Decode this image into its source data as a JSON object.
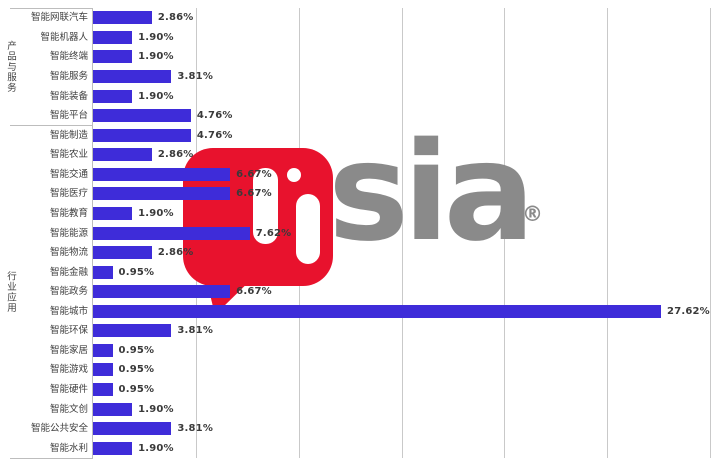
{
  "watermark": {
    "brand_text": "sia",
    "registered": "®",
    "icon_color": "#e8122d",
    "text_color": "#8a8a8a"
  },
  "colors": {
    "bar": "#3e2cd9",
    "gridline": "#c9c9c9",
    "axis_line": "#bdbdbd",
    "label_text": "#3f3f3f",
    "value_text": "#3a3a3a",
    "background": "#ffffff"
  },
  "chart_data": {
    "type": "bar",
    "orientation": "horizontal",
    "title": "",
    "xlabel": "",
    "ylabel": "",
    "xlim": [
      0,
      30
    ],
    "grid": true,
    "gridline_ticks_percent": [
      5,
      10,
      15,
      20,
      25,
      30
    ],
    "value_unit": "%",
    "groups": [
      {
        "name": "产品与服务",
        "items": [
          {
            "label": "智能网联汽车",
            "value": 2.86,
            "display": "2.86%"
          },
          {
            "label": "智能机器人",
            "value": 1.9,
            "display": "1.90%"
          },
          {
            "label": "智能终端",
            "value": 1.9,
            "display": "1.90%"
          },
          {
            "label": "智能服务",
            "value": 3.81,
            "display": "3.81%"
          },
          {
            "label": "智能装备",
            "value": 1.9,
            "display": "1.90%"
          },
          {
            "label": "智能平台",
            "value": 4.76,
            "display": "4.76%"
          }
        ]
      },
      {
        "name": "行业应用",
        "items": [
          {
            "label": "智能制造",
            "value": 4.76,
            "display": "4.76%"
          },
          {
            "label": "智能农业",
            "value": 2.86,
            "display": "2.86%"
          },
          {
            "label": "智能交通",
            "value": 6.67,
            "display": "6.67%"
          },
          {
            "label": "智能医疗",
            "value": 6.67,
            "display": "6.67%"
          },
          {
            "label": "智能教育",
            "value": 1.9,
            "display": "1.90%"
          },
          {
            "label": "智能能源",
            "value": 7.62,
            "display": "7.62%"
          },
          {
            "label": "智能物流",
            "value": 2.86,
            "display": "2.86%"
          },
          {
            "label": "智能金融",
            "value": 0.95,
            "display": "0.95%"
          },
          {
            "label": "智能政务",
            "value": 6.67,
            "display": "6.67%"
          },
          {
            "label": "智能城市",
            "value": 27.62,
            "display": "27.62%"
          },
          {
            "label": "智能环保",
            "value": 3.81,
            "display": "3.81%"
          },
          {
            "label": "智能家居",
            "value": 0.95,
            "display": "0.95%"
          },
          {
            "label": "智能游戏",
            "value": 0.95,
            "display": "0.95%"
          },
          {
            "label": "智能硬件",
            "value": 0.95,
            "display": "0.95%"
          },
          {
            "label": "智能文创",
            "value": 1.9,
            "display": "1.90%"
          },
          {
            "label": "智能公共安全",
            "value": 3.81,
            "display": "3.81%"
          },
          {
            "label": "智能水利",
            "value": 1.9,
            "display": "1.90%"
          }
        ]
      }
    ]
  }
}
